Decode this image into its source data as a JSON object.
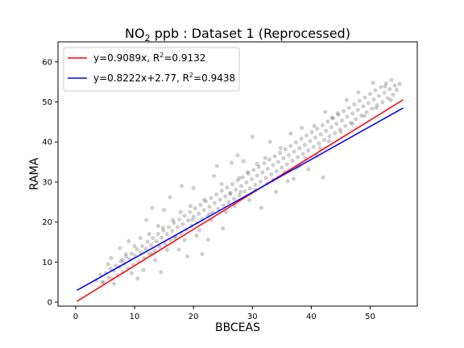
{
  "chart_data": {
    "type": "scatter",
    "title_main": "NO",
    "title_sub": "2",
    "title_rest": " ppb : Dataset 1 (Reprocessed)",
    "xlabel": "BBCEAS",
    "ylabel": "RAMA",
    "xlim": [
      -3,
      58
    ],
    "ylim": [
      -1,
      65
    ],
    "xticks": [
      0,
      10,
      20,
      30,
      40,
      50
    ],
    "yticks": [
      0,
      10,
      20,
      30,
      40,
      50,
      60
    ],
    "grid": false,
    "legend_position": "upper-left",
    "scatter": {
      "color": "#000000",
      "opacity": 0.18,
      "points": [
        [
          3.5,
          5.5
        ],
        [
          4.2,
          6.8
        ],
        [
          4.8,
          4.9
        ],
        [
          5.1,
          7.2
        ],
        [
          5.6,
          6.1
        ],
        [
          5.9,
          8.3
        ],
        [
          6.2,
          5.8
        ],
        [
          6.5,
          7.9
        ],
        [
          6.8,
          9.1
        ],
        [
          7.1,
          6.7
        ],
        [
          7.4,
          8.8
        ],
        [
          7.7,
          10.2
        ],
        [
          8.0,
          7.5
        ],
        [
          8.3,
          9.6
        ],
        [
          8.6,
          11.3
        ],
        [
          8.9,
          8.4
        ],
        [
          9.2,
          10.7
        ],
        [
          9.5,
          12.1
        ],
        [
          9.8,
          9.3
        ],
        [
          10.1,
          11.6
        ],
        [
          10.4,
          13.2
        ],
        [
          10.7,
          10.1
        ],
        [
          11.0,
          12.4
        ],
        [
          11.3,
          14.0
        ],
        [
          11.6,
          11.0
        ],
        [
          11.9,
          13.3
        ],
        [
          12.2,
          15.1
        ],
        [
          12.5,
          12.0
        ],
        [
          12.8,
          14.2
        ],
        [
          13.1,
          16.0
        ],
        [
          13.4,
          12.9
        ],
        [
          13.7,
          15.2
        ],
        [
          14.0,
          17.0
        ],
        [
          14.3,
          13.8
        ],
        [
          14.6,
          16.1
        ],
        [
          14.9,
          17.9
        ],
        [
          15.2,
          14.6
        ],
        [
          15.5,
          17.0
        ],
        [
          15.8,
          18.7
        ],
        [
          16.1,
          15.5
        ],
        [
          16.4,
          17.8
        ],
        [
          16.7,
          19.8
        ],
        [
          17.0,
          16.4
        ],
        [
          17.3,
          18.7
        ],
        [
          17.6,
          20.6
        ],
        [
          17.9,
          17.2
        ],
        [
          18.2,
          19.5
        ],
        [
          18.5,
          21.6
        ],
        [
          18.8,
          18.1
        ],
        [
          19.1,
          20.4
        ],
        [
          19.4,
          22.5
        ],
        [
          19.7,
          19.0
        ],
        [
          20.0,
          21.3
        ],
        [
          20.3,
          23.4
        ],
        [
          20.6,
          19.8
        ],
        [
          20.9,
          22.1
        ],
        [
          21.2,
          24.3
        ],
        [
          21.5,
          20.7
        ],
        [
          21.8,
          23.0
        ],
        [
          22.1,
          25.2
        ],
        [
          22.4,
          21.5
        ],
        [
          22.7,
          23.8
        ],
        [
          23.0,
          26.0
        ],
        [
          23.3,
          22.4
        ],
        [
          23.6,
          24.7
        ],
        [
          23.9,
          26.9
        ],
        [
          24.2,
          23.3
        ],
        [
          24.5,
          25.6
        ],
        [
          24.8,
          27.8
        ],
        [
          25.1,
          24.1
        ],
        [
          25.4,
          26.4
        ],
        [
          25.7,
          28.6
        ],
        [
          26.0,
          25.0
        ],
        [
          26.3,
          27.3
        ],
        [
          26.6,
          29.5
        ],
        [
          26.9,
          25.8
        ],
        [
          27.2,
          28.1
        ],
        [
          27.5,
          30.4
        ],
        [
          27.8,
          26.7
        ],
        [
          28.1,
          29.0
        ],
        [
          28.4,
          31.2
        ],
        [
          28.7,
          27.6
        ],
        [
          29.0,
          29.9
        ],
        [
          29.3,
          32.1
        ],
        [
          29.6,
          28.4
        ],
        [
          29.9,
          30.7
        ],
        [
          30.2,
          33.0
        ],
        [
          30.5,
          29.3
        ],
        [
          30.8,
          31.6
        ],
        [
          31.1,
          33.8
        ],
        [
          31.4,
          30.1
        ],
        [
          31.7,
          32.4
        ],
        [
          32.0,
          34.7
        ],
        [
          32.3,
          31.0
        ],
        [
          32.6,
          33.3
        ],
        [
          32.9,
          35.6
        ],
        [
          33.2,
          31.9
        ],
        [
          33.5,
          34.2
        ],
        [
          33.8,
          36.4
        ],
        [
          34.1,
          32.7
        ],
        [
          34.4,
          35.0
        ],
        [
          34.7,
          37.3
        ],
        [
          35.0,
          33.6
        ],
        [
          35.3,
          35.9
        ],
        [
          35.6,
          38.2
        ],
        [
          35.9,
          34.4
        ],
        [
          36.2,
          36.7
        ],
        [
          36.5,
          39.0
        ],
        [
          36.8,
          35.3
        ],
        [
          37.1,
          37.6
        ],
        [
          37.4,
          39.9
        ],
        [
          37.7,
          36.2
        ],
        [
          38.0,
          38.5
        ],
        [
          38.3,
          40.8
        ],
        [
          38.6,
          37.0
        ],
        [
          38.9,
          39.3
        ],
        [
          39.2,
          41.6
        ],
        [
          39.5,
          37.9
        ],
        [
          39.8,
          40.2
        ],
        [
          40.1,
          42.5
        ],
        [
          40.4,
          38.8
        ],
        [
          40.7,
          41.1
        ],
        [
          41.0,
          43.3
        ],
        [
          41.3,
          39.6
        ],
        [
          41.6,
          41.9
        ],
        [
          41.9,
          44.2
        ],
        [
          42.2,
          40.5
        ],
        [
          42.5,
          42.8
        ],
        [
          42.8,
          45.1
        ],
        [
          43.1,
          41.4
        ],
        [
          43.4,
          43.7
        ],
        [
          43.7,
          45.9
        ],
        [
          44.0,
          42.2
        ],
        [
          44.3,
          44.5
        ],
        [
          44.6,
          46.8
        ],
        [
          44.9,
          43.1
        ],
        [
          45.2,
          45.4
        ],
        [
          45.5,
          47.7
        ],
        [
          45.8,
          44.0
        ],
        [
          46.1,
          46.3
        ],
        [
          46.4,
          48.5
        ],
        [
          46.7,
          44.8
        ],
        [
          47.0,
          47.1
        ],
        [
          47.3,
          49.4
        ],
        [
          47.6,
          45.7
        ],
        [
          47.9,
          48.0
        ],
        [
          48.2,
          50.3
        ],
        [
          48.5,
          46.6
        ],
        [
          48.8,
          48.9
        ],
        [
          49.1,
          51.1
        ],
        [
          49.4,
          47.4
        ],
        [
          49.7,
          49.7
        ],
        [
          50.0,
          52.0
        ],
        [
          50.3,
          48.3
        ],
        [
          50.6,
          50.6
        ],
        [
          50.9,
          52.9
        ],
        [
          51.2,
          49.2
        ],
        [
          51.5,
          51.5
        ],
        [
          51.8,
          53.7
        ],
        [
          52.1,
          50.0
        ],
        [
          52.4,
          52.3
        ],
        [
          52.7,
          54.6
        ],
        [
          53.0,
          50.9
        ],
        [
          53.3,
          53.2
        ],
        [
          53.6,
          55.5
        ],
        [
          53.9,
          51.8
        ],
        [
          54.2,
          54.1
        ],
        [
          54.5,
          53.0
        ],
        [
          30.0,
          41.3
        ],
        [
          26.5,
          34.8
        ],
        [
          20.0,
          28.5
        ],
        [
          21.5,
          12.0
        ],
        [
          22.5,
          15.6
        ],
        [
          16.0,
          26.2
        ],
        [
          13.0,
          23.5
        ],
        [
          19.0,
          11.4
        ],
        [
          34.0,
          27.5
        ],
        [
          36.0,
          30.2
        ],
        [
          38.0,
          34.0
        ],
        [
          39.5,
          33.2
        ],
        [
          42.0,
          31.1
        ],
        [
          41.0,
          36.5
        ],
        [
          27.5,
          36.7
        ],
        [
          24.0,
          34.0
        ],
        [
          10.5,
          5.9
        ],
        [
          14.5,
          7.5
        ],
        [
          31.5,
          23.5
        ],
        [
          25.0,
          18.4
        ],
        [
          18.0,
          29.0
        ],
        [
          46.0,
          50.5
        ],
        [
          48.0,
          52.4
        ],
        [
          50.5,
          54.8
        ],
        [
          52.5,
          53.9
        ],
        [
          44.5,
          47.2
        ],
        [
          6.0,
          11.0
        ],
        [
          7.5,
          13.5
        ],
        [
          9.0,
          15.2
        ],
        [
          11.5,
          8.0
        ],
        [
          12.0,
          20.5
        ],
        [
          15.0,
          23.0
        ],
        [
          17.5,
          13.1
        ],
        [
          23.5,
          31.5
        ],
        [
          28.5,
          35.2
        ],
        [
          33.0,
          40.0
        ],
        [
          36.5,
          42.1
        ],
        [
          40.5,
          44.0
        ],
        [
          43.5,
          46.1
        ],
        [
          37.0,
          30.8
        ],
        [
          32.5,
          29.6
        ],
        [
          29.5,
          25.5
        ],
        [
          20.5,
          16.6
        ],
        [
          19.5,
          24.0
        ],
        [
          16.5,
          20.5
        ],
        [
          14.0,
          19.0
        ],
        [
          12.5,
          17.0
        ],
        [
          10.0,
          14.0
        ],
        [
          8.5,
          12.0
        ],
        [
          9.5,
          7.2
        ],
        [
          13.5,
          10.5
        ],
        [
          15.5,
          13.0
        ],
        [
          18.5,
          15.5
        ],
        [
          21.0,
          18.0
        ],
        [
          23.0,
          20.5
        ],
        [
          25.5,
          22.5
        ],
        [
          27.0,
          24.0
        ],
        [
          28.0,
          27.5
        ],
        [
          30.5,
          28.0
        ],
        [
          33.5,
          30.5
        ],
        [
          35.5,
          32.5
        ],
        [
          37.5,
          33.5
        ],
        [
          39.0,
          36.0
        ],
        [
          41.5,
          38.5
        ],
        [
          43.0,
          40.2
        ],
        [
          45.0,
          42.5
        ],
        [
          47.0,
          44.5
        ],
        [
          49.0,
          46.5
        ],
        [
          51.0,
          48.5
        ],
        [
          53.5,
          50.5
        ],
        [
          55.0,
          54.5
        ],
        [
          4.5,
          5.0
        ],
        [
          5.5,
          9.5
        ],
        [
          6.5,
          4.6
        ],
        [
          8.0,
          10.5
        ],
        [
          11.0,
          16.0
        ],
        [
          13.0,
          12.0
        ],
        [
          14.8,
          18.6
        ],
        [
          16.8,
          16.0
        ],
        [
          17.8,
          22.5
        ],
        [
          19.8,
          20.5
        ],
        [
          21.8,
          25.5
        ],
        [
          22.8,
          22.0
        ],
        [
          24.8,
          29.5
        ],
        [
          26.2,
          27.0
        ],
        [
          27.8,
          31.0
        ],
        [
          29.2,
          32.5
        ],
        [
          30.8,
          34.5
        ],
        [
          32.2,
          36.0
        ],
        [
          34.8,
          38.5
        ],
        [
          38.4,
          43.5
        ],
        [
          42.4,
          47.5
        ]
      ]
    },
    "legend": [
      {
        "label": "y=0.9089x, R",
        "sup": "2",
        "tail": "=0.9132",
        "color": "#ff0000"
      },
      {
        "label": "y=0.8222x+2.77, R",
        "sup": "2",
        "tail": "=0.9438",
        "color": "#0000ff"
      }
    ],
    "series": [
      {
        "type": "fit-line",
        "slope": 0.9089,
        "intercept": 0,
        "x": [
          0.2,
          55.6
        ],
        "color": "#ff0000"
      },
      {
        "type": "fit-line",
        "slope": 0.8222,
        "intercept": 2.77,
        "x": [
          0.2,
          55.6
        ],
        "color": "#0000ff"
      }
    ]
  }
}
